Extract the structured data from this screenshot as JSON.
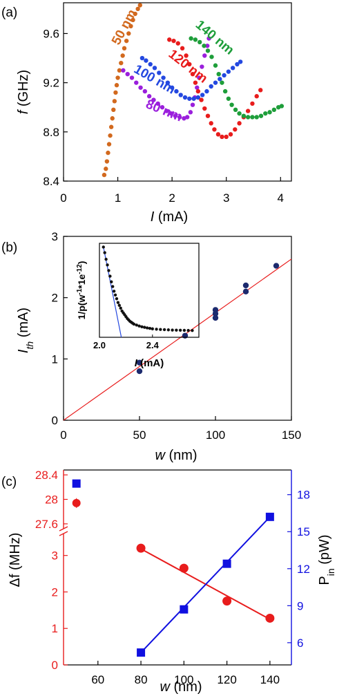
{
  "chart_data": [
    {
      "id": "a",
      "type": "scatter",
      "panel_label": "(a)",
      "xlabel_italic": "I",
      "xlabel_rest": " (mA)",
      "ylabel_italic": "f",
      "ylabel_rest": " (GHz)",
      "xlim": [
        0,
        4.2
      ],
      "ylim": [
        8.4,
        9.85
      ],
      "xticks": [
        0,
        1,
        2,
        3,
        4
      ],
      "yticks": [
        8.4,
        8.8,
        9.2,
        9.6
      ],
      "tick_labels_x": [
        "0",
        "1",
        "2",
        "3",
        "4"
      ],
      "tick_labels_y": [
        "8.4",
        "8.8",
        "9.2",
        "9.6"
      ],
      "series": [
        {
          "name": "50 nm",
          "color": "#d2691e",
          "points": [
            [
              0.75,
              8.45
            ],
            [
              0.78,
              8.5
            ],
            [
              0.8,
              8.56
            ],
            [
              0.82,
              8.63
            ],
            [
              0.84,
              8.7
            ],
            [
              0.86,
              8.77
            ],
            [
              0.88,
              8.84
            ],
            [
              0.9,
              8.91
            ],
            [
              0.92,
              8.98
            ],
            [
              0.94,
              9.05
            ],
            [
              0.96,
              9.12
            ],
            [
              0.98,
              9.18
            ],
            [
              1.0,
              9.24
            ],
            [
              1.03,
              9.3
            ],
            [
              1.06,
              9.36
            ],
            [
              1.09,
              9.42
            ],
            [
              1.12,
              9.48
            ],
            [
              1.16,
              9.54
            ],
            [
              1.2,
              9.6
            ],
            [
              1.24,
              9.66
            ],
            [
              1.28,
              9.71
            ],
            [
              1.32,
              9.76
            ],
            [
              1.37,
              9.8
            ],
            [
              1.41,
              9.83
            ]
          ]
        },
        {
          "name": "80 nm",
          "color": "#9a1fdc",
          "points": [
            [
              1.1,
              9.3
            ],
            [
              1.18,
              9.27
            ],
            [
              1.26,
              9.24
            ],
            [
              1.34,
              9.2
            ],
            [
              1.42,
              9.16
            ],
            [
              1.5,
              9.13
            ],
            [
              1.58,
              9.09
            ],
            [
              1.66,
              9.06
            ],
            [
              1.74,
              9.03
            ],
            [
              1.82,
              9.0
            ],
            [
              1.9,
              8.97
            ],
            [
              1.98,
              8.95
            ],
            [
              2.06,
              8.93
            ],
            [
              2.14,
              8.92
            ],
            [
              2.22,
              8.91
            ],
            [
              2.28,
              8.92
            ],
            [
              2.34,
              8.96
            ],
            [
              2.38,
              9.02
            ],
            [
              2.42,
              9.08
            ],
            [
              2.46,
              9.16
            ],
            [
              2.5,
              9.24
            ],
            [
              2.55,
              9.33
            ],
            [
              2.6,
              9.42
            ],
            [
              2.65,
              9.5
            ],
            [
              2.68,
              9.56
            ]
          ]
        },
        {
          "name": "100 nm",
          "color": "#2448e0",
          "points": [
            [
              1.45,
              9.4
            ],
            [
              1.52,
              9.38
            ],
            [
              1.6,
              9.35
            ],
            [
              1.68,
              9.32
            ],
            [
              1.76,
              9.28
            ],
            [
              1.84,
              9.24
            ],
            [
              1.92,
              9.2
            ],
            [
              2.0,
              9.16
            ],
            [
              2.08,
              9.13
            ],
            [
              2.16,
              9.1
            ],
            [
              2.24,
              9.08
            ],
            [
              2.32,
              9.07
            ],
            [
              2.4,
              9.07
            ],
            [
              2.48,
              9.08
            ],
            [
              2.56,
              9.1
            ],
            [
              2.64,
              9.13
            ],
            [
              2.72,
              9.17
            ],
            [
              2.8,
              9.2
            ],
            [
              2.88,
              9.23
            ],
            [
              2.96,
              9.26
            ],
            [
              3.04,
              9.29
            ],
            [
              3.12,
              9.32
            ],
            [
              3.2,
              9.35
            ],
            [
              3.26,
              9.37
            ]
          ]
        },
        {
          "name": "120 nm",
          "color": "#e81c1c",
          "points": [
            [
              1.95,
              9.55
            ],
            [
              2.03,
              9.54
            ],
            [
              2.11,
              9.52
            ],
            [
              2.19,
              9.48
            ],
            [
              2.26,
              9.42
            ],
            [
              2.32,
              9.35
            ],
            [
              2.38,
              9.27
            ],
            [
              2.43,
              9.2
            ],
            [
              2.48,
              9.13
            ],
            [
              2.54,
              9.06
            ],
            [
              2.6,
              8.99
            ],
            [
              2.66,
              8.93
            ],
            [
              2.72,
              8.87
            ],
            [
              2.78,
              8.82
            ],
            [
              2.85,
              8.78
            ],
            [
              2.92,
              8.76
            ],
            [
              3.0,
              8.76
            ],
            [
              3.08,
              8.78
            ],
            [
              3.16,
              8.82
            ],
            [
              3.24,
              8.87
            ],
            [
              3.32,
              8.92
            ],
            [
              3.4,
              8.97
            ],
            [
              3.48,
              9.03
            ],
            [
              3.56,
              9.09
            ],
            [
              3.63,
              9.14
            ]
          ]
        },
        {
          "name": "140 nm",
          "color": "#1e9e3a",
          "points": [
            [
              2.35,
              9.56
            ],
            [
              2.43,
              9.55
            ],
            [
              2.51,
              9.53
            ],
            [
              2.59,
              9.5
            ],
            [
              2.66,
              9.46
            ],
            [
              2.73,
              9.41
            ],
            [
              2.8,
              9.34
            ],
            [
              2.86,
              9.27
            ],
            [
              2.92,
              9.2
            ],
            [
              2.98,
              9.13
            ],
            [
              3.04,
              9.07
            ],
            [
              3.1,
              9.02
            ],
            [
              3.17,
              8.98
            ],
            [
              3.24,
              8.95
            ],
            [
              3.32,
              8.93
            ],
            [
              3.4,
              8.92
            ],
            [
              3.48,
              8.92
            ],
            [
              3.56,
              8.92
            ],
            [
              3.64,
              8.93
            ],
            [
              3.72,
              8.95
            ],
            [
              3.8,
              8.96
            ],
            [
              3.88,
              8.98
            ],
            [
              3.96,
              9.0
            ],
            [
              4.02,
              9.01
            ]
          ]
        }
      ],
      "annotations": [
        {
          "text": "50 nm",
          "color": "#d2691e",
          "x": 1.02,
          "y": 9.5,
          "angle": -62
        },
        {
          "text": "120 nm",
          "color": "#e81c1c",
          "x": 1.92,
          "y": 9.42,
          "angle": 38
        },
        {
          "text": "100 nm",
          "color": "#2448e0",
          "x": 1.28,
          "y": 9.29,
          "angle": 30
        },
        {
          "text": "80 nm",
          "color": "#9a1fdc",
          "x": 1.5,
          "y": 9.0,
          "angle": 22
        },
        {
          "text": "140 nm",
          "color": "#1e9e3a",
          "x": 2.42,
          "y": 9.66,
          "angle": 40
        }
      ]
    },
    {
      "id": "b",
      "type": "scatter",
      "panel_label": "(b)",
      "xlabel_italic": "w",
      "xlabel_rest": " (nm)",
      "ylabel_italic": "I",
      "ylabel_sub": "th",
      "ylabel_rest": " (mA)",
      "xlim": [
        0,
        150
      ],
      "ylim": [
        0,
        3
      ],
      "xticks": [
        0,
        50,
        100,
        150
      ],
      "yticks": [
        0,
        1,
        2,
        3
      ],
      "tick_labels_x": [
        "0",
        "50",
        "100",
        "150"
      ],
      "tick_labels_y": [
        "0",
        "1",
        "2",
        "3"
      ],
      "points": [
        [
          50,
          0.8
        ],
        [
          50,
          0.94
        ],
        [
          80,
          1.38
        ],
        [
          100,
          1.67
        ],
        [
          100,
          1.74
        ],
        [
          100,
          1.8
        ],
        [
          120,
          2.1
        ],
        [
          120,
          2.2
        ],
        [
          140,
          2.52
        ]
      ],
      "point_color": "#1c2a6e",
      "fit_line": {
        "x": [
          0,
          150
        ],
        "y": [
          0,
          2.63
        ],
        "color": "#e81c1c"
      },
      "inset": {
        "xlabel_italic": "I",
        "xlabel_rest": " (mA)",
        "ylabel_text": "1/p(w",
        "ylabel_sup1": "-1",
        "ylabel_mid": "*1e",
        "ylabel_sup2": "-12",
        "ylabel_end": ")",
        "xlim": [
          2.0,
          2.75
        ],
        "ylim": [
          0,
          1.0
        ],
        "xticks": [
          2.0,
          2.4
        ],
        "tick_labels_x": [
          "2.0",
          "2.4"
        ],
        "points": [
          [
            2.03,
            0.96
          ],
          [
            2.04,
            0.9
          ],
          [
            2.05,
            0.83
          ],
          [
            2.06,
            0.77
          ],
          [
            2.07,
            0.71
          ],
          [
            2.08,
            0.65
          ],
          [
            2.09,
            0.59
          ],
          [
            2.1,
            0.54
          ],
          [
            2.11,
            0.49
          ],
          [
            2.12,
            0.45
          ],
          [
            2.13,
            0.41
          ],
          [
            2.14,
            0.37
          ],
          [
            2.15,
            0.34
          ],
          [
            2.16,
            0.31
          ],
          [
            2.17,
            0.28
          ],
          [
            2.18,
            0.26
          ],
          [
            2.19,
            0.24
          ],
          [
            2.2,
            0.22
          ],
          [
            2.21,
            0.2
          ],
          [
            2.22,
            0.185
          ],
          [
            2.23,
            0.17
          ],
          [
            2.24,
            0.16
          ],
          [
            2.25,
            0.15
          ],
          [
            2.26,
            0.14
          ],
          [
            2.28,
            0.13
          ],
          [
            2.3,
            0.12
          ],
          [
            2.32,
            0.112
          ],
          [
            2.34,
            0.106
          ],
          [
            2.36,
            0.1
          ],
          [
            2.38,
            0.095
          ],
          [
            2.4,
            0.09
          ],
          [
            2.43,
            0.086
          ],
          [
            2.46,
            0.083
          ],
          [
            2.49,
            0.081
          ],
          [
            2.52,
            0.079
          ],
          [
            2.55,
            0.077
          ],
          [
            2.58,
            0.076
          ],
          [
            2.61,
            0.075
          ],
          [
            2.64,
            0.074
          ],
          [
            2.67,
            0.073
          ],
          [
            2.7,
            0.072
          ]
        ],
        "fit_line": {
          "x": [
            2.03,
            2.165
          ],
          "y": [
            0.96,
            0.0
          ],
          "color": "#2448e0"
        }
      }
    },
    {
      "id": "c",
      "type": "scatter",
      "panel_label": "(c)",
      "xlabel_italic": "w",
      "xlabel_rest": " (nm)",
      "ylabel_left": "Δf (MHz)",
      "ylabel_right_main": "P",
      "ylabel_right_sub": "in",
      "ylabel_right_rest": " (pW)",
      "xlim": [
        44,
        150
      ],
      "xticks": [
        60,
        80,
        100,
        120,
        140
      ],
      "tick_labels_x": [
        "60",
        "80",
        "100",
        "120",
        "140"
      ],
      "left_axis": {
        "color": "#e81c1c",
        "lower_range": [
          0,
          3.6
        ],
        "upper_range": [
          27.52,
          28.48
        ],
        "lower_ticks": [
          0,
          1,
          2,
          3
        ],
        "lower_tick_labels": [
          "0",
          "1",
          "2",
          "3"
        ],
        "upper_ticks": [
          27.6,
          28.0,
          28.4
        ],
        "upper_tick_labels": [
          "27.6",
          "28",
          "28.4"
        ]
      },
      "right_axis": {
        "color": "#1010e0",
        "range": [
          4.2,
          20.0
        ],
        "ticks": [
          6,
          9,
          12,
          15,
          18
        ],
        "tick_labels": [
          "6",
          "9",
          "12",
          "15",
          "18"
        ]
      },
      "series": [
        {
          "name": "Δf",
          "axis": "left",
          "color": "#e81c1c",
          "marker": "circle",
          "points": [
            [
              80,
              3.2
            ],
            [
              100,
              2.65
            ],
            [
              120,
              1.75
            ],
            [
              140,
              1.28
            ]
          ],
          "fit": {
            "x": [
              80,
              140
            ],
            "y": [
              3.18,
              1.25
            ]
          },
          "outlier": {
            "x": 50,
            "y": 27.94,
            "err": 0.08
          }
        },
        {
          "name": "P_in",
          "axis": "right",
          "color": "#1010e0",
          "marker": "square",
          "points": [
            [
              80,
              5.2
            ],
            [
              100,
              8.7
            ],
            [
              120,
              12.4
            ],
            [
              140,
              16.2
            ]
          ],
          "fit": {
            "x": [
              80,
              140
            ],
            "y": [
              5.2,
              16.2
            ]
          },
          "outlier": {
            "x": 50,
            "y": 18.9
          }
        }
      ]
    }
  ]
}
